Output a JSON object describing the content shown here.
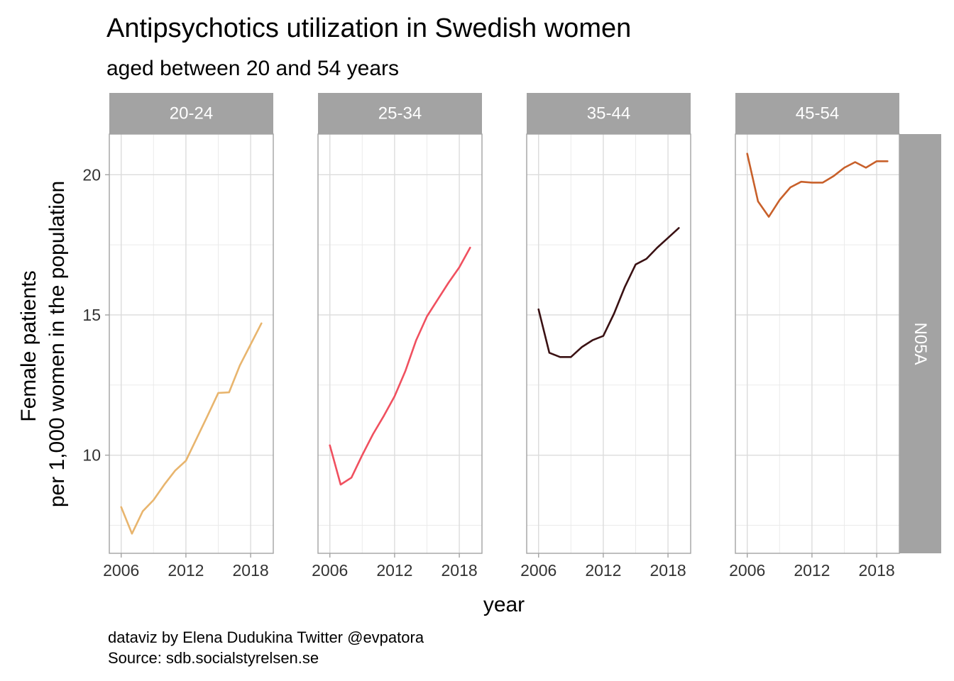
{
  "chart_data": {
    "type": "line",
    "title": "Antipsychotics utilization in Swedish women",
    "subtitle": "aged between 20 and 54 years",
    "xlabel": "year",
    "ylabel_lines": [
      "Female patients",
      "per 1,000 women in the population"
    ],
    "caption_lines": [
      "dataviz by Elena Dudukina Twitter @evpatora",
      "Source: sdb.socialstyrelsen.se"
    ],
    "strip_right": "N05A",
    "x_ticks": [
      2006,
      2012,
      2018
    ],
    "y_ticks": [
      10,
      15,
      20
    ],
    "xlim": [
      2004.9,
      2020.1
    ],
    "ylim": [
      6.5,
      21.45
    ],
    "x": [
      2006,
      2007,
      2008,
      2009,
      2010,
      2011,
      2012,
      2013,
      2014,
      2015,
      2016,
      2017,
      2018,
      2019
    ],
    "grid": true,
    "panels": [
      {
        "label": "20-24",
        "color": "#E8B56E",
        "values": [
          8.15,
          7.2,
          8.0,
          8.4,
          8.95,
          9.45,
          9.8,
          10.6,
          11.4,
          12.22,
          12.24,
          13.2,
          13.95,
          14.7
        ]
      },
      {
        "label": "25-34",
        "color": "#F0505F",
        "values": [
          10.35,
          8.95,
          9.2,
          10.0,
          10.75,
          11.4,
          12.1,
          13.0,
          14.1,
          14.95,
          15.55,
          16.15,
          16.7,
          17.4
        ]
      },
      {
        "label": "35-44",
        "color": "#3A1113",
        "values": [
          15.2,
          13.65,
          13.5,
          13.5,
          13.85,
          14.1,
          14.25,
          15.05,
          16.0,
          16.8,
          17.0,
          17.4,
          17.75,
          18.1
        ]
      },
      {
        "label": "45-54",
        "color": "#C8602A",
        "values": [
          20.75,
          19.05,
          18.5,
          19.1,
          19.55,
          19.75,
          19.72,
          19.72,
          19.95,
          20.25,
          20.45,
          20.25,
          20.48,
          20.48
        ]
      }
    ]
  }
}
